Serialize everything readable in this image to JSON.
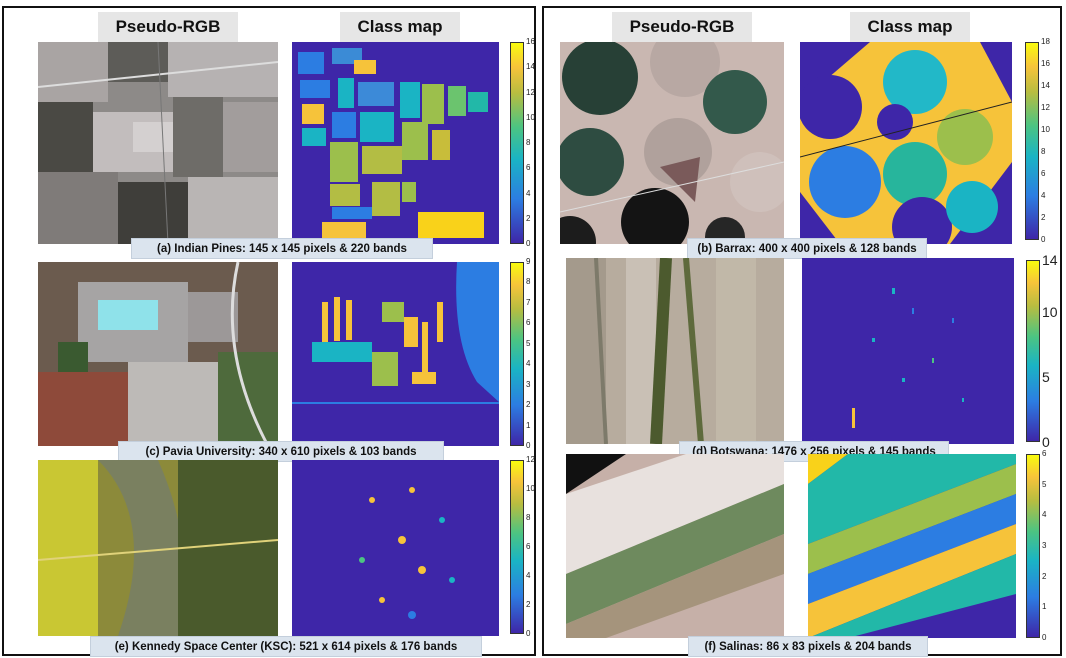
{
  "column_headers": {
    "left_rgb": "Pseudo-RGB",
    "left_map": "Class map",
    "right_rgb": "Pseudo-RGB",
    "right_map": "Class map"
  },
  "datasets": [
    {
      "id": "a",
      "caption": "(a) Indian  Pines: 145 x 145 pixels & 220 bands",
      "colorbar_ticks": [
        "0",
        "2",
        "4",
        "6",
        "8",
        "10",
        "12",
        "14",
        "16"
      ]
    },
    {
      "id": "b",
      "caption": "(b) Barrax: 400 x 400 pixels & 128 bands",
      "colorbar_ticks": [
        "0",
        "2",
        "4",
        "6",
        "8",
        "10",
        "12",
        "14",
        "16",
        "18"
      ]
    },
    {
      "id": "c",
      "caption": "(c) Pavia  University: 340 x 610 pixels & 103 bands",
      "colorbar_ticks": [
        "0",
        "1",
        "2",
        "3",
        "4",
        "5",
        "6",
        "7",
        "8",
        "9"
      ]
    },
    {
      "id": "d",
      "caption": "(d) Botswana:  1476 x 256 pixels & 145 bands",
      "colorbar_ticks": [
        "0",
        "5",
        "10",
        "14"
      ]
    },
    {
      "id": "e",
      "caption": "(e) Kennedy Space  Center (KSC): 521 x 614 pixels & 176 bands",
      "colorbar_ticks": [
        "0",
        "2",
        "4",
        "6",
        "8",
        "10",
        "12"
      ]
    },
    {
      "id": "f",
      "caption": "(f) Salinas:  86 x 83 pixels & 204 bands",
      "colorbar_ticks": [
        "0",
        "1",
        "2",
        "3",
        "4",
        "5",
        "6"
      ]
    }
  ],
  "colors": {
    "background_class": "#3e26a8",
    "colormap": "parula"
  }
}
